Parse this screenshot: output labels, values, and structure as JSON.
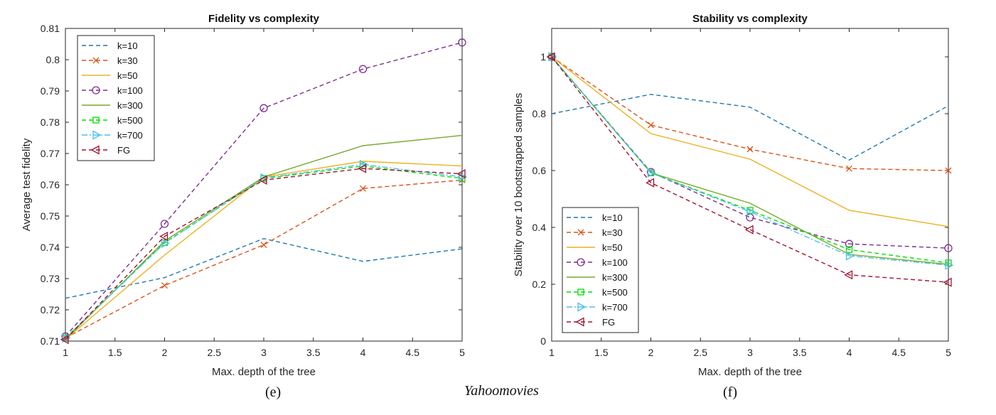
{
  "captions": {
    "left": "(e)",
    "right": "(f)",
    "dataset": "Yahoomovies"
  },
  "series_styles": [
    {
      "name": "k=10",
      "color": "#1f77b4",
      "dash": "dashed",
      "marker": "none"
    },
    {
      "name": "k=30",
      "color": "#d9541a",
      "dash": "dashed",
      "marker": "x"
    },
    {
      "name": "k=50",
      "color": "#edb120",
      "dash": "solid",
      "marker": "none"
    },
    {
      "name": "k=100",
      "color": "#7e2f8e",
      "dash": "dashed",
      "marker": "circle"
    },
    {
      "name": "k=300",
      "color": "#77ac30",
      "dash": "solid",
      "marker": "none"
    },
    {
      "name": "k=500",
      "color": "#00e000",
      "dash": "dashed",
      "marker": "square"
    },
    {
      "name": "k=700",
      "color": "#4dbeee",
      "dash": "dashdot",
      "marker": "triangle-right"
    },
    {
      "name": "FG",
      "color": "#a2142f",
      "dash": "dashed",
      "marker": "triangle-left"
    }
  ],
  "chart_data": [
    {
      "type": "line",
      "title": "Fidelity vs complexity",
      "xlabel": "Max. depth of the tree",
      "ylabel": "Average test fidelity",
      "xlim": [
        1,
        5
      ],
      "ylim": [
        0.71,
        0.81
      ],
      "xticks": [
        "1",
        "1.5",
        "2",
        "2.5",
        "3",
        "3.5",
        "4",
        "4.5",
        "5"
      ],
      "yticks": [
        "0.71",
        "0.72",
        "0.73",
        "0.74",
        "0.75",
        "0.76",
        "0.77",
        "0.78",
        "0.79",
        "0.8",
        "0.81"
      ],
      "legend_position": "top-left",
      "x": [
        1,
        2,
        3,
        4,
        5
      ],
      "series": [
        {
          "name": "k=10",
          "values": [
            0.7237,
            0.7303,
            0.7428,
            0.7355,
            0.7395
          ]
        },
        {
          "name": "k=30",
          "values": [
            0.711,
            0.7278,
            0.7408,
            0.7588,
            0.7615
          ]
        },
        {
          "name": "k=50",
          "values": [
            0.7105,
            0.7375,
            0.7625,
            0.7675,
            0.766
          ]
        },
        {
          "name": "k=100",
          "values": [
            0.7115,
            0.7475,
            0.7845,
            0.797,
            0.8055
          ]
        },
        {
          "name": "k=300",
          "values": [
            0.7105,
            0.742,
            0.7625,
            0.7725,
            0.7758
          ]
        },
        {
          "name": "k=500",
          "values": [
            0.711,
            0.7415,
            0.762,
            0.766,
            0.762
          ]
        },
        {
          "name": "k=700",
          "values": [
            0.711,
            0.7413,
            0.7622,
            0.7665,
            0.7625
          ]
        },
        {
          "name": "FG",
          "values": [
            0.7105,
            0.7435,
            0.7615,
            0.7652,
            0.7635
          ]
        }
      ]
    },
    {
      "type": "line",
      "title": "Stability vs complexity",
      "xlabel": "Max. depth of the tree",
      "ylabel": "Stability over 10 bootstrapped samples",
      "xlim": [
        1,
        5
      ],
      "ylim": [
        0,
        1.1
      ],
      "xticks": [
        "1",
        "1.5",
        "2",
        "2.5",
        "3",
        "3.5",
        "4",
        "4.5",
        "5"
      ],
      "yticks": [
        "0",
        "0.2",
        "0.4",
        "0.6",
        "0.8",
        "1"
      ],
      "legend_position": "bottom-left",
      "x": [
        1,
        2,
        3,
        4,
        5
      ],
      "series": [
        {
          "name": "k=10",
          "values": [
            0.8,
            0.868,
            0.823,
            0.637,
            0.828
          ]
        },
        {
          "name": "k=30",
          "values": [
            1.0,
            0.76,
            0.675,
            0.607,
            0.6
          ]
        },
        {
          "name": "k=50",
          "values": [
            1.0,
            0.73,
            0.64,
            0.46,
            0.403
          ]
        },
        {
          "name": "k=100",
          "values": [
            1.0,
            0.595,
            0.435,
            0.342,
            0.327
          ]
        },
        {
          "name": "k=300",
          "values": [
            1.0,
            0.592,
            0.485,
            0.305,
            0.27
          ]
        },
        {
          "name": "k=500",
          "values": [
            1.0,
            0.592,
            0.46,
            0.322,
            0.275
          ]
        },
        {
          "name": "k=700",
          "values": [
            1.0,
            0.592,
            0.455,
            0.3,
            0.267
          ]
        },
        {
          "name": "FG",
          "values": [
            1.0,
            0.557,
            0.392,
            0.233,
            0.207
          ]
        }
      ]
    }
  ]
}
